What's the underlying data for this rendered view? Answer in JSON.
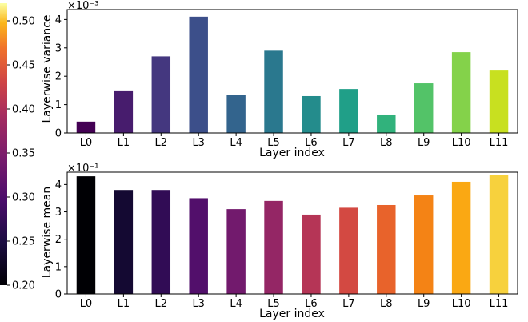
{
  "colorbar": {
    "ticks": [
      "0.20",
      "0.25",
      "0.30",
      "0.35",
      "0.40",
      "0.45",
      "0.50"
    ],
    "range": [
      0.2,
      0.52
    ]
  },
  "chart_data": [
    {
      "type": "bar",
      "categories": [
        "L0",
        "L1",
        "L2",
        "L3",
        "L4",
        "L5",
        "L6",
        "L7",
        "L8",
        "L9",
        "L10",
        "L11"
      ],
      "values": [
        0.4,
        1.5,
        2.7,
        4.1,
        1.35,
        2.9,
        1.3,
        1.55,
        0.65,
        1.75,
        2.85,
        2.2
      ],
      "scale_label": "×10⁻³",
      "xlabel": "Layer index",
      "ylabel": "Layerwise variance",
      "yticks": [
        "0",
        "1",
        "2",
        "3",
        "4"
      ],
      "ylim": [
        0,
        4.35
      ],
      "colormap": "viridis"
    },
    {
      "type": "bar",
      "categories": [
        "L0",
        "L1",
        "L2",
        "L3",
        "L4",
        "L5",
        "L6",
        "L7",
        "L8",
        "L9",
        "L10",
        "L11"
      ],
      "values": [
        4.3,
        3.8,
        3.8,
        3.5,
        3.1,
        3.4,
        2.9,
        3.15,
        3.25,
        3.6,
        4.1,
        4.35
      ],
      "scale_label": "×10⁻¹",
      "xlabel": "Layer index",
      "ylabel": "Layerwise mean",
      "yticks": [
        "0",
        "1",
        "2",
        "3",
        "4"
      ],
      "ylim": [
        0,
        4.45
      ],
      "colormap": "inferno"
    }
  ]
}
